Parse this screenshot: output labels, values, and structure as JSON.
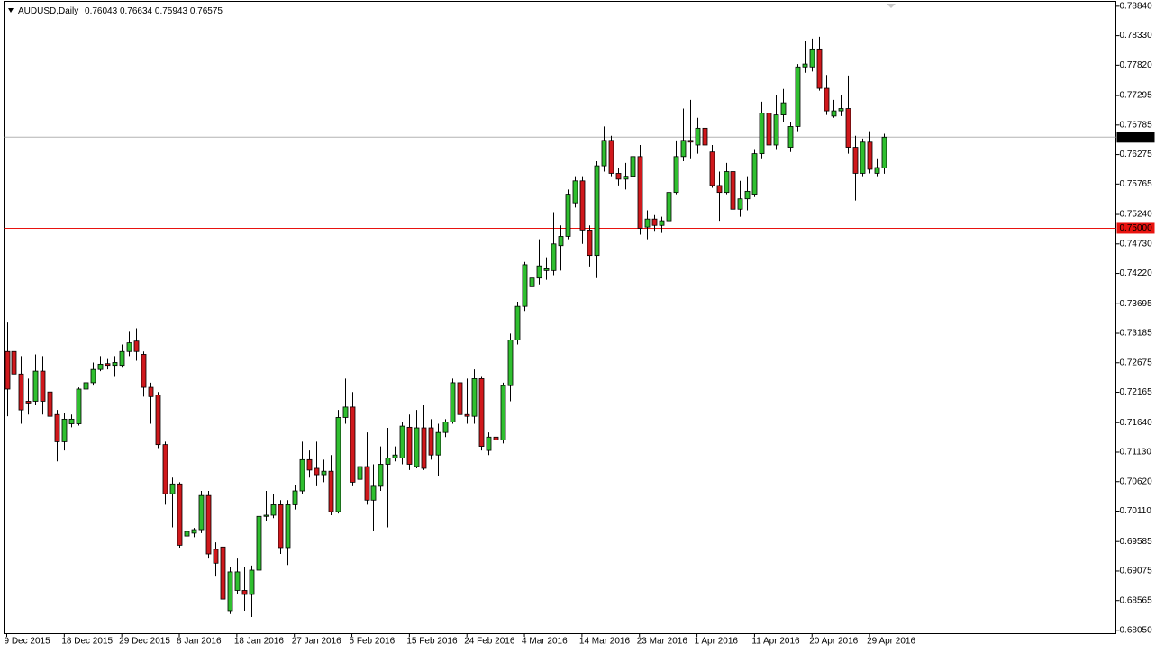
{
  "chart_data": {
    "type": "candlestick",
    "title": "AUDUSD,Daily",
    "categories": [
      "9 Dec 2015",
      null,
      null,
      null,
      null,
      null,
      null,
      null,
      "18 Dec 2015",
      null,
      null,
      null,
      null,
      null,
      null,
      null,
      "29 Dec 2015",
      null,
      null,
      null,
      null,
      null,
      null,
      null,
      "8 Jan 2016",
      null,
      null,
      null,
      null,
      null,
      null,
      null,
      "18 Jan 2016",
      null,
      null,
      null,
      null,
      null,
      null,
      null,
      "27 Jan 2016",
      null,
      null,
      null,
      null,
      null,
      null,
      null,
      "5 Feb 2016",
      null,
      null,
      null,
      null,
      null,
      null,
      null,
      "15 Feb 2016",
      null,
      null,
      null,
      null,
      null,
      null,
      null,
      "24 Feb 2016",
      null,
      null,
      null,
      null,
      null,
      null,
      null,
      "4 Mar 2016",
      null,
      null,
      null,
      null,
      null,
      null,
      null,
      "14 Mar 2016",
      null,
      null,
      null,
      null,
      null,
      null,
      null,
      "23 Mar 2016",
      null,
      null,
      null,
      null,
      null,
      null,
      null,
      "1 Apr 2016",
      null,
      null,
      null,
      null,
      null,
      null,
      null,
      "11 Apr 2016",
      null,
      null,
      null,
      null,
      null,
      null,
      null,
      "20 Apr 2016",
      null,
      null,
      null,
      null,
      null,
      null,
      null,
      "29 Apr 2016",
      null,
      null
    ],
    "open": [
      0.7287,
      0.7287,
      0.7248,
      0.7201,
      0.7201,
      0.7253,
      0.7217,
      0.7178,
      0.7131,
      0.7162,
      0.7162,
      0.7222,
      0.7233,
      0.7256,
      0.7266,
      0.7263,
      0.7263,
      0.7287,
      0.7305,
      0.7282,
      0.7225,
      0.7212,
      0.7126,
      0.7041,
      0.7058,
      0.6968,
      0.6973,
      0.6979,
      0.7038,
      0.6945,
      0.6949,
      0.6839,
      0.6874,
      0.6874,
      0.6867,
      0.6909,
      0.7002,
      0.7004,
      0.7022,
      0.6948,
      0.7022,
      0.7046,
      0.71,
      0.7085,
      0.7074,
      0.708,
      0.701,
      0.7173,
      0.7191,
      0.7066,
      0.7088,
      0.703,
      0.7054,
      0.7092,
      0.7103,
      0.7103,
      0.7156,
      0.7088,
      0.7155,
      0.7155,
      0.7108,
      0.7147,
      0.7165,
      0.7233,
      0.7178,
      0.7175,
      0.724,
      0.7116,
      0.7139,
      0.7134,
      0.7228,
      0.7307,
      0.7365,
      0.7399,
      0.7414,
      0.7427,
      0.7427,
      0.747,
      0.7486,
      0.7544,
      0.7582,
      0.7497,
      0.7453,
      0.7608,
      0.7652,
      0.7595,
      0.7585,
      0.759,
      0.7624,
      0.7502,
      0.7516,
      0.7505,
      0.7513,
      0.7562,
      0.7624,
      0.7652,
      0.7644,
      0.7673,
      0.7632,
      0.7574,
      0.7562,
      0.7598,
      0.7533,
      0.7551,
      0.7559,
      0.7629,
      0.7699,
      0.7644,
      0.7696,
      0.764,
      0.7676,
      0.7779,
      0.7779,
      0.781,
      0.7742,
      0.7694,
      0.7703,
      0.7707,
      0.764,
      0.7595,
      0.7649,
      0.7595,
      0.76043
    ],
    "high": [
      0.7337,
      0.7324,
      0.7279,
      0.724,
      0.7282,
      0.7279,
      0.7233,
      0.7186,
      0.7181,
      0.7178,
      0.7225,
      0.7248,
      0.7268,
      0.7279,
      0.7274,
      0.7279,
      0.7299,
      0.7321,
      0.7327,
      0.7287,
      0.7233,
      0.7217,
      0.7131,
      0.7069,
      0.7061,
      0.6983,
      0.6982,
      0.7046,
      0.7046,
      0.6957,
      0.6957,
      0.6914,
      0.6929,
      0.6914,
      0.6917,
      0.7007,
      0.7046,
      0.7041,
      0.703,
      0.703,
      0.7057,
      0.7131,
      0.7116,
      0.7131,
      0.71,
      0.7108,
      0.7186,
      0.724,
      0.7217,
      0.7105,
      0.7147,
      0.7092,
      0.7123,
      0.7155,
      0.7123,
      0.7165,
      0.7178,
      0.7186,
      0.7194,
      0.717,
      0.7162,
      0.717,
      0.724,
      0.7256,
      0.724,
      0.7256,
      0.7243,
      0.7147,
      0.715,
      0.7233,
      0.7318,
      0.7373,
      0.7442,
      0.7427,
      0.7481,
      0.745,
      0.7528,
      0.7505,
      0.7567,
      0.759,
      0.759,
      0.7505,
      0.7616,
      0.7676,
      0.766,
      0.7605,
      0.7613,
      0.7647,
      0.7644,
      0.7531,
      0.7523,
      0.752,
      0.757,
      0.7652,
      0.7707,
      0.7722,
      0.7691,
      0.7683,
      0.7644,
      0.7598,
      0.7613,
      0.7605,
      0.7582,
      0.759,
      0.7637,
      0.7719,
      0.7707,
      0.773,
      0.7741,
      0.7683,
      0.7784,
      0.7823,
      0.7828,
      0.7831,
      0.7765,
      0.7722,
      0.773,
      0.7764,
      0.766,
      0.7655,
      0.7668,
      0.7621,
      0.76634
    ],
    "low": [
      0.7175,
      0.724,
      0.7162,
      0.7178,
      0.7194,
      0.7178,
      0.7162,
      0.7097,
      0.7116,
      0.7156,
      0.7159,
      0.7212,
      0.7228,
      0.7253,
      0.7256,
      0.7243,
      0.7259,
      0.7279,
      0.7271,
      0.7209,
      0.7162,
      0.712,
      0.7022,
      0.6983,
      0.6948,
      0.6929,
      0.6966,
      0.6973,
      0.6929,
      0.6898,
      0.6828,
      0.6833,
      0.6867,
      0.6839,
      0.6828,
      0.6898,
      0.6994,
      0.6999,
      0.6937,
      0.6918,
      0.7014,
      0.7041,
      0.7069,
      0.7054,
      0.7061,
      0.7004,
      0.7007,
      0.7162,
      0.7054,
      0.7061,
      0.7022,
      0.6976,
      0.7046,
      0.6983,
      0.7097,
      0.7092,
      0.7082,
      0.7085,
      0.7082,
      0.71,
      0.7072,
      0.7139,
      0.7162,
      0.717,
      0.7162,
      0.7162,
      0.7116,
      0.7108,
      0.7113,
      0.7128,
      0.7201,
      0.7299,
      0.7357,
      0.7393,
      0.7403,
      0.7411,
      0.7419,
      0.7427,
      0.7481,
      0.7536,
      0.7473,
      0.7434,
      0.7414,
      0.7598,
      0.759,
      0.7574,
      0.7567,
      0.7582,
      0.7489,
      0.7481,
      0.7494,
      0.7492,
      0.7508,
      0.7559,
      0.7616,
      0.7621,
      0.7629,
      0.7636,
      0.757,
      0.7513,
      0.7559,
      0.7492,
      0.752,
      0.7531,
      0.7554,
      0.7621,
      0.7632,
      0.7637,
      0.7683,
      0.7632,
      0.7668,
      0.7769,
      0.7771,
      0.7738,
      0.7696,
      0.7691,
      0.7694,
      0.7629,
      0.7548,
      0.759,
      0.7595,
      0.759,
      0.75943
    ],
    "close": [
      0.7222,
      0.7248,
      0.7186,
      0.7198,
      0.7253,
      0.7201,
      0.7175,
      0.7131,
      0.717,
      0.717,
      0.7222,
      0.7233,
      0.7256,
      0.7265,
      0.7263,
      0.7268,
      0.7287,
      0.7302,
      0.7287,
      0.7225,
      0.7209,
      0.7126,
      0.7041,
      0.7058,
      0.6952,
      0.6976,
      0.6979,
      0.7038,
      0.6937,
      0.6921,
      0.6859,
      0.6906,
      0.6906,
      0.6867,
      0.6909,
      0.7002,
      0.7004,
      0.7022,
      0.6948,
      0.7022,
      0.7046,
      0.71,
      0.7082,
      0.7074,
      0.708,
      0.701,
      0.7173,
      0.7191,
      0.7061,
      0.7088,
      0.703,
      0.7054,
      0.7092,
      0.7103,
      0.7108,
      0.7158,
      0.7092,
      0.7155,
      0.7085,
      0.7108,
      0.7147,
      0.7165,
      0.7233,
      0.7178,
      0.7175,
      0.724,
      0.7123,
      0.7139,
      0.7134,
      0.7228,
      0.7307,
      0.7365,
      0.7437,
      0.7414,
      0.7435,
      0.743,
      0.7473,
      0.7486,
      0.7559,
      0.7582,
      0.7497,
      0.7453,
      0.7608,
      0.7652,
      0.7595,
      0.7585,
      0.759,
      0.7624,
      0.75,
      0.7516,
      0.7505,
      0.7513,
      0.7562,
      0.7624,
      0.7652,
      0.7649,
      0.7673,
      0.7644,
      0.7574,
      0.7562,
      0.7598,
      0.7533,
      0.7551,
      0.7564,
      0.7629,
      0.7699,
      0.7644,
      0.7696,
      0.7717,
      0.7676,
      0.7779,
      0.7784,
      0.781,
      0.7742,
      0.7703,
      0.7703,
      0.7707,
      0.764,
      0.7595,
      0.7649,
      0.7602,
      0.7605,
      0.76575
    ],
    "up_color": "#2fbf2f",
    "down_color": "#d0181c",
    "wick_color": "#000000",
    "ylim": [
      0.68,
      0.789
    ],
    "yticks": [
      {
        "value": 0.6805,
        "label": "0.68050"
      },
      {
        "value": 0.68565,
        "label": "0.68565"
      },
      {
        "value": 0.69075,
        "label": "0.69075"
      },
      {
        "value": 0.69585,
        "label": "0.69585"
      },
      {
        "value": 0.7011,
        "label": "0.70110"
      },
      {
        "value": 0.7062,
        "label": "0.70620"
      },
      {
        "value": 0.7113,
        "label": "0.71130"
      },
      {
        "value": 0.7164,
        "label": "0.71640"
      },
      {
        "value": 0.72165,
        "label": "0.72165"
      },
      {
        "value": 0.72675,
        "label": "0.72675"
      },
      {
        "value": 0.73185,
        "label": "0.73185"
      },
      {
        "value": 0.73695,
        "label": "0.73695"
      },
      {
        "value": 0.7422,
        "label": "0.74220"
      },
      {
        "value": 0.7473,
        "label": "0.74730"
      },
      {
        "value": 0.7524,
        "label": "0.75240"
      },
      {
        "value": 0.75765,
        "label": "0.75765"
      },
      {
        "value": 0.76275,
        "label": "0.76275"
      },
      {
        "value": 0.76785,
        "label": "0.76785"
      },
      {
        "value": 0.77295,
        "label": "0.77295"
      },
      {
        "value": 0.7782,
        "label": "0.77820"
      },
      {
        "value": 0.7833,
        "label": "0.78330"
      },
      {
        "value": 0.7884,
        "label": "0.78840"
      }
    ],
    "level_lines": [
      {
        "value": 0.75,
        "label": "0.75000",
        "color": "#e8130f"
      }
    ],
    "price_line_color": "#b4b4b4"
  }
}
